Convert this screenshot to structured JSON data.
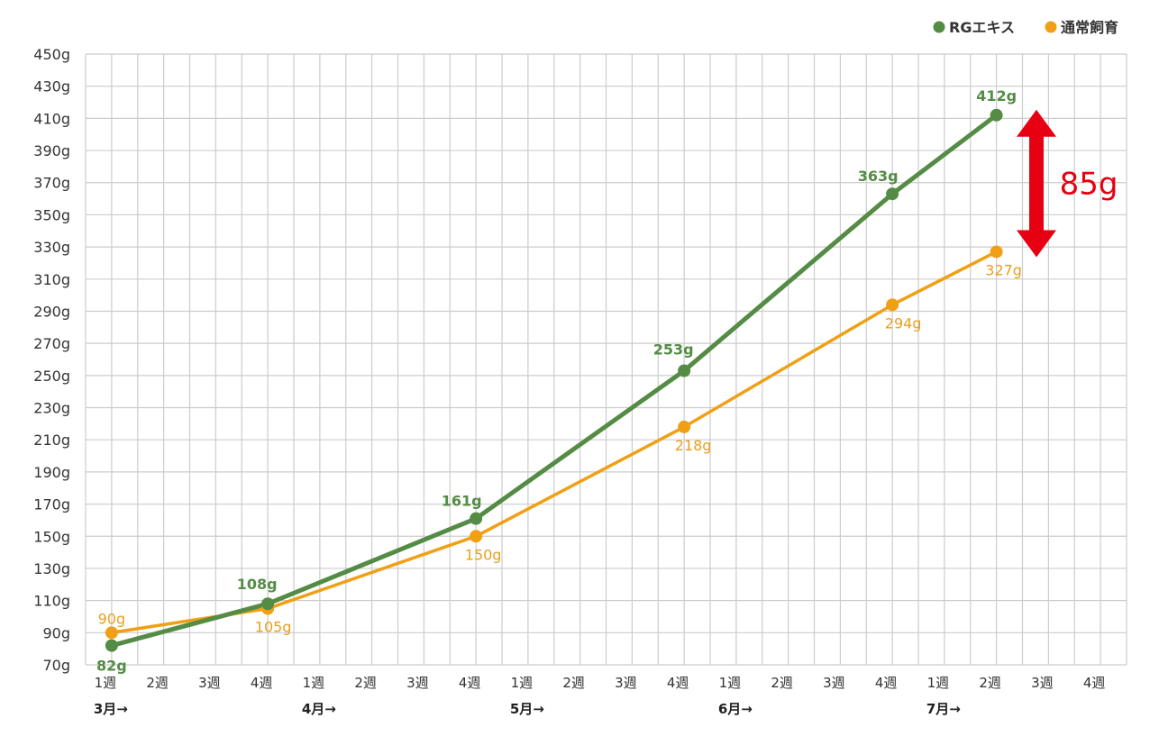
{
  "chart_data": {
    "type": "line",
    "x": [
      "1週",
      "2週",
      "3週",
      "4週",
      "1週",
      "2週",
      "3週",
      "4週",
      "1週",
      "2週",
      "3週",
      "4週",
      "1週",
      "2週",
      "3週",
      "4週",
      "1週",
      "2週",
      "3週",
      "4週"
    ],
    "months": [
      {
        "label": "3月→",
        "start_index": 0
      },
      {
        "label": "4月→",
        "start_index": 4
      },
      {
        "label": "5月→",
        "start_index": 8
      },
      {
        "label": "6月→",
        "start_index": 12
      },
      {
        "label": "7月→",
        "start_index": 16
      }
    ],
    "ylim": [
      70,
      450
    ],
    "yticks": [
      "70g",
      "90g",
      "110g",
      "130g",
      "150g",
      "170g",
      "190g",
      "210g",
      "230g",
      "250g",
      "270g",
      "290g",
      "310g",
      "330g",
      "350g",
      "370g",
      "390g",
      "410g",
      "430g",
      "450g"
    ],
    "grid": true,
    "legend_position": "top-right",
    "series": [
      {
        "name": "RGエキス",
        "color": "#548c45",
        "points": [
          {
            "index": 0,
            "value": 82,
            "label": "82g"
          },
          {
            "index": 3,
            "value": 108,
            "label": "108g"
          },
          {
            "index": 7,
            "value": 161,
            "label": "161g"
          },
          {
            "index": 11,
            "value": 253,
            "label": "253g"
          },
          {
            "index": 15,
            "value": 363,
            "label": "363g"
          },
          {
            "index": 17,
            "value": 412,
            "label": "412g"
          }
        ]
      },
      {
        "name": "通常飼育",
        "color": "#f0a015",
        "points": [
          {
            "index": 0,
            "value": 90,
            "label": "90g"
          },
          {
            "index": 3,
            "value": 105,
            "label": "105g"
          },
          {
            "index": 7,
            "value": 150,
            "label": "150g"
          },
          {
            "index": 11,
            "value": 218,
            "label": "218g"
          },
          {
            "index": 15,
            "value": 294,
            "label": "294g"
          },
          {
            "index": 17,
            "value": 327,
            "label": "327g"
          }
        ]
      }
    ],
    "annotation": {
      "text": "85g",
      "from_value": 412,
      "to_value": 327,
      "color": "#e60012"
    }
  }
}
